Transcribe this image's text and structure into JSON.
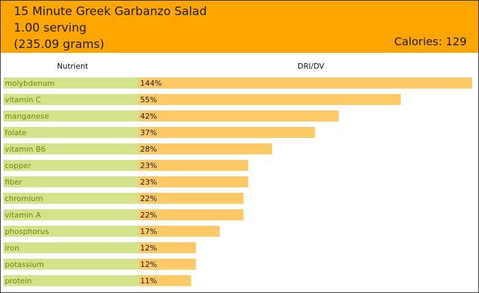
{
  "header": {
    "recipe_title": "15 Minute Greek Garbanzo Salad",
    "serving": "1.00 serving",
    "weight": "(235.09 grams)",
    "calories": "Calories: 129"
  },
  "columns": {
    "nutrient": "Nutrient",
    "dri": "DRI/DV"
  },
  "colors": {
    "header_bg": "#ffa500",
    "nutrient_cell": "#d4e38a",
    "bar": "#ffc966",
    "nutrient_text": "#6a8c0a"
  },
  "chart_data": {
    "type": "bar",
    "orientation": "horizontal",
    "categories": [
      "molybdenum",
      "vitamin C",
      "manganese",
      "folate",
      "vitamin B6",
      "copper",
      "fiber",
      "chromium",
      "vitamin A",
      "phosphorus",
      "iron",
      "potassium",
      "protein"
    ],
    "values": [
      144,
      55,
      42,
      37,
      28,
      23,
      23,
      22,
      22,
      17,
      12,
      12,
      11
    ],
    "value_labels": [
      "144%",
      "55%",
      "42%",
      "37%",
      "28%",
      "23%",
      "23%",
      "22%",
      "22%",
      "17%",
      "12%",
      "12%",
      "11%"
    ],
    "unit": "%",
    "xlabel": "DRI/DV",
    "ylabel": "Nutrient",
    "bar_cap": 70
  }
}
